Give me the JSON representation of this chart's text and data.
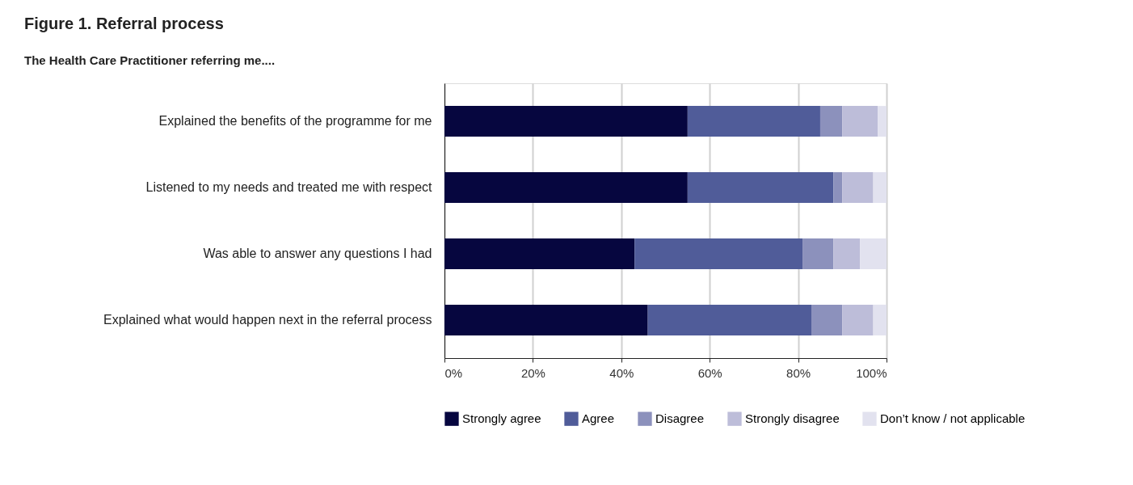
{
  "chart_data": {
    "type": "bar",
    "orientation": "horizontal",
    "stacked": true,
    "title": "Figure 1. Referral process",
    "subtitle": "The Health Care Practitioner referring me....",
    "categories": [
      "Explained the benefits of the programme for me",
      "Listened to my needs and treated me with respect",
      "Was able to answer any questions I had",
      "Explained what would happen next in the referral process"
    ],
    "series": [
      {
        "name": "Strongly agree",
        "color": "#06063f",
        "values": [
          55,
          55,
          43,
          46
        ]
      },
      {
        "name": "Agree",
        "color": "#505c99",
        "values": [
          30,
          33,
          38,
          37
        ]
      },
      {
        "name": "Disagree",
        "color": "#8c91bc",
        "values": [
          5,
          2,
          7,
          7
        ]
      },
      {
        "name": "Strongly disagree",
        "color": "#bdbdd9",
        "values": [
          8,
          7,
          6,
          7
        ]
      },
      {
        "name": "Don’t know / not applicable",
        "color": "#e2e2ef",
        "values": [
          2,
          3,
          6,
          3
        ]
      }
    ],
    "xlim": [
      0,
      100
    ],
    "xticks": [
      {
        "value": 0,
        "label": "0%"
      },
      {
        "value": 20,
        "label": "20%"
      },
      {
        "value": 40,
        "label": "40%"
      },
      {
        "value": 60,
        "label": "60%"
      },
      {
        "value": 80,
        "label": "80%"
      },
      {
        "value": 100,
        "label": "100%"
      }
    ],
    "grid": "x",
    "legend": "bottom"
  }
}
